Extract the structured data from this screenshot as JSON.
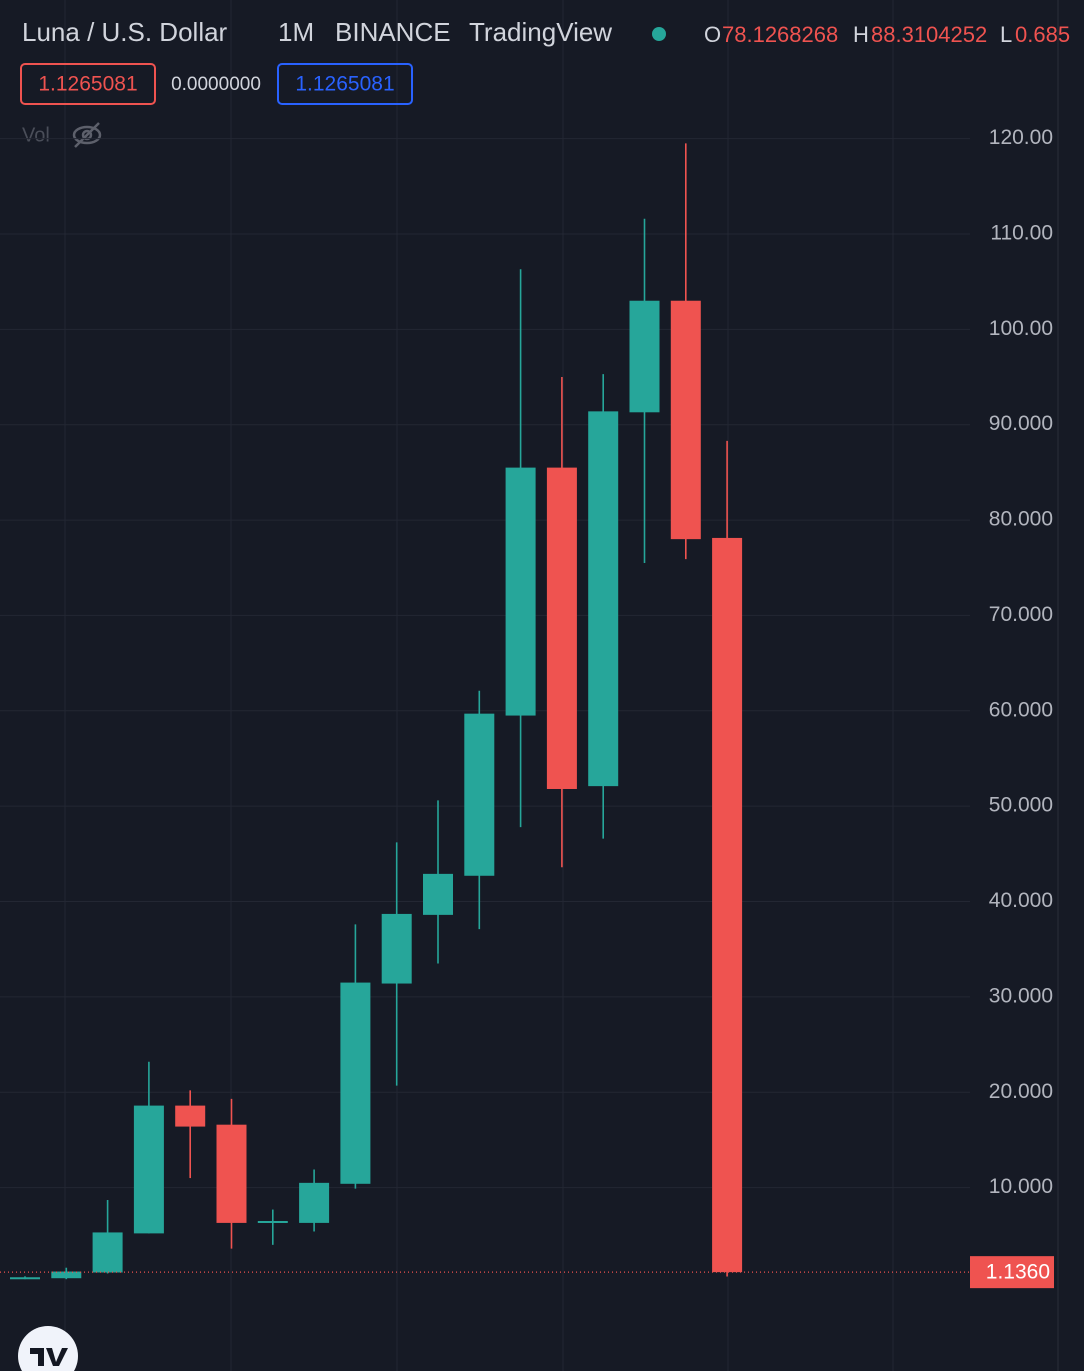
{
  "chart_data": {
    "type": "candlestick",
    "title": "Luna / U.S. Dollar",
    "interval": "1M",
    "exchange": "BINANCE",
    "source": "TradingView",
    "legend_keys": [
      "O",
      "H",
      "L"
    ],
    "badges": [
      "1.1265081",
      "0.0000000",
      "1.1265081"
    ],
    "volume_label": "Vol",
    "up_color": "#26a69a",
    "down_color": "#ef5350",
    "open": [
      0.5,
      0.5,
      1.1,
      5.2,
      18.6,
      16.6,
      6.3,
      6.3,
      10.4,
      31.4,
      38.6,
      42.7,
      59.5,
      85.5,
      52.1,
      91.3,
      103.0,
      78.1268268
    ],
    "high": [
      0.7,
      1.6,
      8.7,
      23.2,
      20.2,
      19.3,
      7.7,
      11.9,
      37.6,
      46.2,
      50.6,
      62.1,
      106.3,
      95.0,
      95.3,
      111.6,
      119.5,
      88.3104252
    ],
    "low": [
      0.4,
      0.4,
      1.0,
      5.2,
      11.0,
      3.6,
      4.0,
      5.4,
      9.9,
      20.7,
      33.5,
      37.1,
      47.8,
      43.6,
      46.6,
      75.5,
      75.9,
      0.685
    ],
    "close": [
      0.6,
      1.2,
      5.3,
      18.6,
      16.4,
      6.3,
      6.5,
      10.5,
      31.5,
      38.7,
      42.9,
      59.7,
      85.5,
      51.8,
      91.4,
      103.0,
      78.0,
      1.136
    ],
    "price_line": {
      "value": 1.136,
      "label": "1.1360"
    },
    "ylim": [
      -9.23,
      123.0
    ],
    "yticks": [
      {
        "value": 10,
        "label": "10.000"
      },
      {
        "value": 20,
        "label": "20.000"
      },
      {
        "value": 30,
        "label": "30.000"
      },
      {
        "value": 40,
        "label": "40.000"
      },
      {
        "value": 50,
        "label": "50.000"
      },
      {
        "value": 60,
        "label": "60.000"
      },
      {
        "value": 70,
        "label": "70.000"
      },
      {
        "value": 80,
        "label": "80.000"
      },
      {
        "value": 90,
        "label": "90.000"
      },
      {
        "value": 100,
        "label": "100.00"
      },
      {
        "value": 110,
        "label": "110.00"
      },
      {
        "value": 120,
        "label": "120.00"
      }
    ],
    "grid": true
  }
}
